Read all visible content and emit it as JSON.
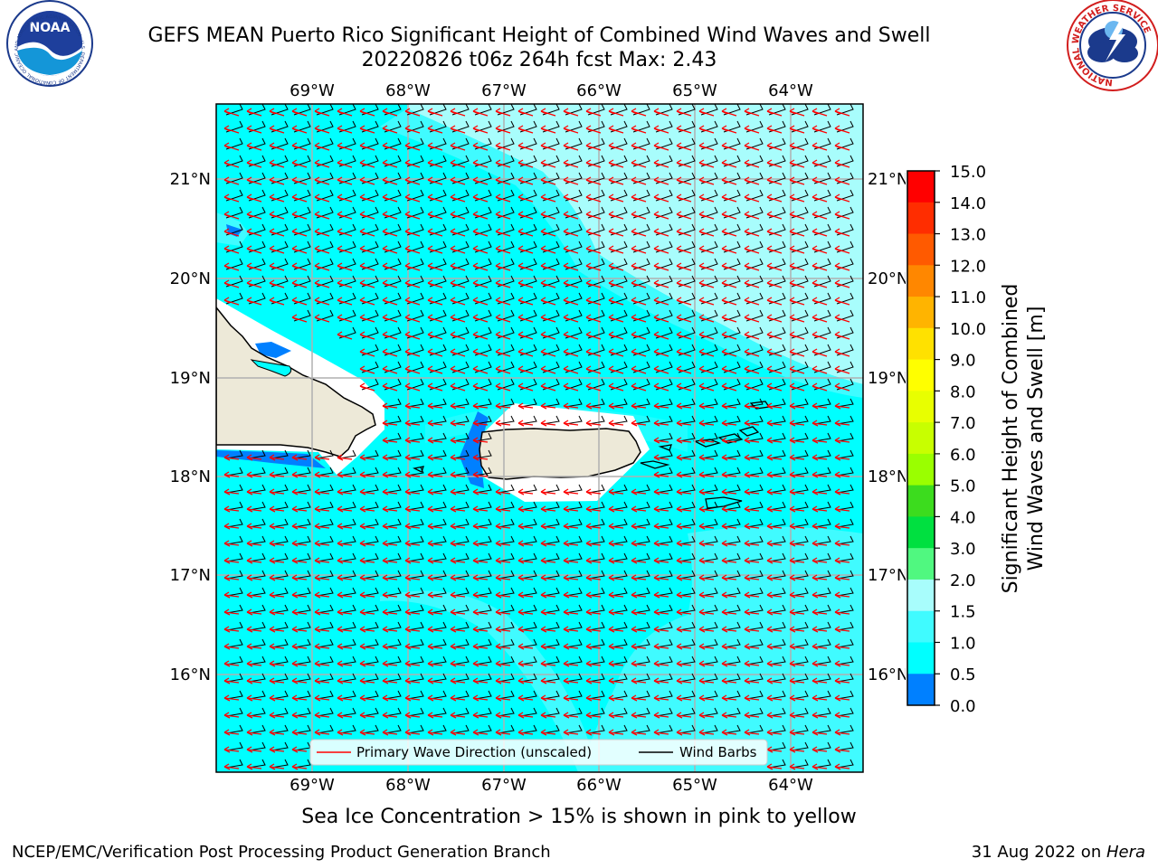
{
  "header": {
    "title_line1": "GEFS MEAN Puerto Rico Significant Height of Combined Wind Waves and Swell",
    "title_line2": "20220826 t06z 264h fcst   Max: 2.43"
  },
  "logos": {
    "noaa_text": "NOAA",
    "noaa_ring_text": "NATIONAL OCEANIC AND ATMOSPHERIC ADMINISTRATION · U.S. DEPARTMENT OF COMMERCE",
    "nws_ring_text": "NATIONAL WEATHER SERVICE"
  },
  "map": {
    "lon_labels": [
      "69°W",
      "68°W",
      "67°W",
      "66°W",
      "65°W",
      "64°W"
    ],
    "lat_labels": [
      "21°N",
      "20°N",
      "19°N",
      "18°N",
      "17°N",
      "16°N"
    ],
    "legend": {
      "wave_direction": "Primary Wave Direction (unscaled)",
      "wind_barbs": "Wind Barbs"
    },
    "colors": {
      "land": "#ede9d8",
      "sea_1_0_1_5": "#00ffff",
      "sea_1_5_2_0": "#40fbff",
      "sea_2_0_3_0": "#a8fdfc",
      "sea_0_5_1_0": "#0080ff",
      "wave_arrow": "#ff0000",
      "wind_barb": "#000000"
    }
  },
  "colorbar": {
    "label_line1": "Significant Height of Combined",
    "label_line2": "Wind Waves and Swell [m]",
    "ticks": [
      "15.0",
      "14.0",
      "13.0",
      "12.0",
      "11.0",
      "10.0",
      "9.0",
      "8.0",
      "7.0",
      "6.0",
      "5.0",
      "4.0",
      "3.0",
      "2.0",
      "1.5",
      "1.0",
      "0.5",
      "0.0"
    ],
    "colors_top_to_bottom": [
      "#ff0000",
      "#ff2d00",
      "#ff5a00",
      "#ff8700",
      "#ffb400",
      "#ffe100",
      "#ffff00",
      "#e8ff00",
      "#c8ff00",
      "#9aff00",
      "#3cdc1e",
      "#00e040",
      "#50f880",
      "#a8fdfc",
      "#40fbff",
      "#00ffff",
      "#0080ff",
      "#0000ff"
    ]
  },
  "footer": {
    "subtitle": "Sea Ice Concentration > 15% is shown in pink to yellow",
    "left": "NCEP/EMC/Verification Post Processing Product Generation Branch",
    "right_prefix": "31 Aug 2022 on ",
    "right_host": "Hera"
  }
}
